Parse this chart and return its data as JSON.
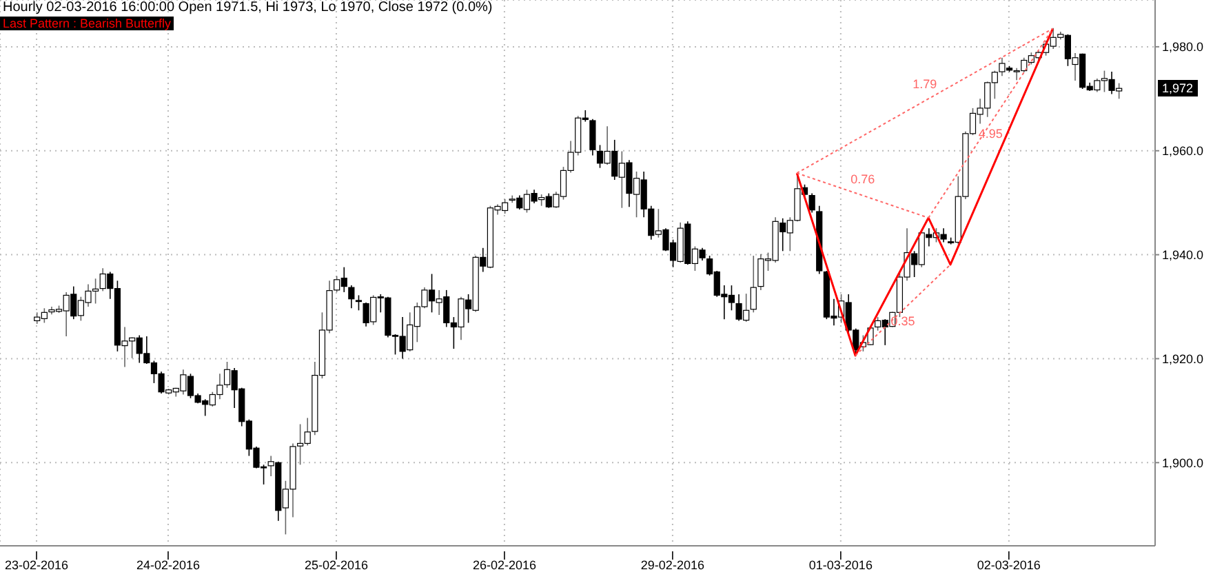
{
  "chart_data": {
    "type": "candlestick",
    "title": "Hourly 02-03-2016 16:00:00 Open 1971.5, Hi 1973, Lo 1970, Close 1972 (0.0%)",
    "subtitle": "Last Pattern : Bearish Butterfly",
    "categories": [
      "23-02-2016",
      null,
      null,
      null,
      null,
      null,
      null,
      null,
      null,
      null,
      null,
      null,
      null,
      null,
      null,
      null,
      null,
      null,
      "24-02-2016",
      null,
      null,
      null,
      null,
      null,
      null,
      null,
      null,
      null,
      null,
      null,
      null,
      null,
      null,
      null,
      null,
      null,
      null,
      null,
      null,
      null,
      null,
      "25-02-2016",
      null,
      null,
      null,
      null,
      null,
      null,
      null,
      null,
      null,
      null,
      null,
      null,
      null,
      null,
      null,
      null,
      null,
      null,
      null,
      null,
      null,
      null,
      "26-02-2016",
      null,
      null,
      null,
      null,
      null,
      null,
      null,
      null,
      null,
      null,
      null,
      null,
      null,
      null,
      null,
      null,
      null,
      null,
      null,
      null,
      null,
      null,
      "29-02-2016",
      null,
      null,
      null,
      null,
      null,
      null,
      null,
      null,
      null,
      null,
      null,
      null,
      null,
      null,
      null,
      null,
      null,
      null,
      null,
      null,
      null,
      null,
      "01-03-2016",
      null,
      null,
      null,
      null,
      null,
      null,
      null,
      null,
      null,
      null,
      null,
      null,
      null,
      null,
      null,
      null,
      null,
      null,
      null,
      null,
      null,
      null,
      "02-03-2016",
      null,
      null,
      null,
      null,
      null,
      null,
      null,
      null,
      null,
      null,
      null,
      null,
      null,
      null,
      null
    ],
    "ohlc": [
      [
        1927.3,
        1928.9,
        1926.7,
        1928
      ],
      [
        1927.7,
        1929.7,
        1926.9,
        1928.9
      ],
      [
        1929,
        1930,
        1928.5,
        1929.4
      ],
      [
        1929.1,
        1930.2,
        1928.8,
        1929.5
      ],
      [
        1929.2,
        1932.8,
        1924.3,
        1932.2
      ],
      [
        1932.4,
        1933.9,
        1927.6,
        1928.2
      ],
      [
        1928.3,
        1931.9,
        1927.3,
        1931.2
      ],
      [
        1930.8,
        1934.3,
        1930,
        1933
      ],
      [
        1933,
        1935.4,
        1930.6,
        1933.4
      ],
      [
        1933.5,
        1937.4,
        1933,
        1936.3
      ],
      [
        1936.3,
        1936.7,
        1931.5,
        1933.5
      ],
      [
        1933.5,
        1935,
        1921.4,
        1922.6
      ],
      [
        1922.5,
        1926.1,
        1918.4,
        1923.4
      ],
      [
        1923.4,
        1924.1,
        1920.1,
        1924
      ],
      [
        1924,
        1924.5,
        1919.2,
        1921
      ],
      [
        1921,
        1924.3,
        1919,
        1919.2
      ],
      [
        1919.2,
        1919.6,
        1915.3,
        1917.1
      ],
      [
        1917.1,
        1917.5,
        1913.3,
        1913.6
      ],
      [
        1913.4,
        1914.2,
        1913.1,
        1914
      ],
      [
        1913.6,
        1914.4,
        1912.7,
        1914.3
      ],
      [
        1913.8,
        1917.9,
        1913.1,
        1916.9
      ],
      [
        1916.6,
        1917.1,
        1912.4,
        1912.9
      ],
      [
        1912.9,
        1913.3,
        1911.4,
        1911.6
      ],
      [
        1911.9,
        1912.2,
        1909,
        1911.2
      ],
      [
        1911.1,
        1913.6,
        1910.8,
        1913.1
      ],
      [
        1913.1,
        1917.1,
        1912.2,
        1914.9
      ],
      [
        1915,
        1919.4,
        1914.4,
        1917.9
      ],
      [
        1917.7,
        1918.2,
        1910.5,
        1914
      ],
      [
        1914.2,
        1914.4,
        1907,
        1907.9
      ],
      [
        1908,
        1908.3,
        1901.3,
        1902.6
      ],
      [
        1902.8,
        1903.1,
        1898.9,
        1899.1
      ],
      [
        1899.2,
        1899.6,
        1895.8,
        1899
      ],
      [
        1899.4,
        1901.3,
        1897.4,
        1900.2
      ],
      [
        1900,
        1900.2,
        1888.8,
        1890.8
      ],
      [
        1891.3,
        1896.5,
        1886.2,
        1894.9
      ],
      [
        1894.9,
        1903.7,
        1889.5,
        1903.1
      ],
      [
        1903.2,
        1907.4,
        1899.6,
        1903.7
      ],
      [
        1903.7,
        1908.6,
        1903.3,
        1905.9
      ],
      [
        1906,
        1919.4,
        1905.3,
        1916.8
      ],
      [
        1916.8,
        1928.9,
        1916.2,
        1925.5
      ],
      [
        1925.5,
        1935,
        1924.9,
        1933.1
      ],
      [
        1933.2,
        1935.9,
        1932.8,
        1935.2
      ],
      [
        1935.5,
        1937.6,
        1932.8,
        1933.9
      ],
      [
        1933.7,
        1934.1,
        1929.7,
        1931.5
      ],
      [
        1931.2,
        1932.2,
        1929.3,
        1931
      ],
      [
        1930.6,
        1930.8,
        1926.2,
        1926.9
      ],
      [
        1927.1,
        1932.2,
        1926.5,
        1931.8
      ],
      [
        1931.9,
        1932.4,
        1928.9,
        1931.7
      ],
      [
        1931.7,
        1931.9,
        1924.1,
        1924.5
      ],
      [
        1924.5,
        1924.7,
        1920.8,
        1924.3
      ],
      [
        1924.3,
        1928,
        1920,
        1921.4
      ],
      [
        1921.7,
        1928.9,
        1921.4,
        1926.5
      ],
      [
        1926.2,
        1930.8,
        1923.2,
        1930
      ],
      [
        1930,
        1933.7,
        1929.7,
        1933.2
      ],
      [
        1933.2,
        1936.3,
        1928.9,
        1931.1
      ],
      [
        1930.8,
        1933.2,
        1928.4,
        1931.5
      ],
      [
        1931.9,
        1933.2,
        1926.1,
        1926.9
      ],
      [
        1926.9,
        1928,
        1921.9,
        1926.1
      ],
      [
        1926.1,
        1931.9,
        1923.6,
        1931.5
      ],
      [
        1931.3,
        1932.4,
        1926.9,
        1929.6
      ],
      [
        1929.3,
        1939.8,
        1929,
        1939.5
      ],
      [
        1939.5,
        1941.3,
        1936.7,
        1937.8
      ],
      [
        1937.6,
        1949.4,
        1937.4,
        1949
      ],
      [
        1948.6,
        1949.7,
        1947.7,
        1949.3
      ],
      [
        1948.5,
        1950.7,
        1947.9,
        1950
      ],
      [
        1950.6,
        1951.4,
        1950,
        1950.7
      ],
      [
        1950.9,
        1951.4,
        1948.7,
        1949
      ],
      [
        1948.7,
        1952.5,
        1948.1,
        1951.6
      ],
      [
        1951.8,
        1952.5,
        1949.9,
        1950.3
      ],
      [
        1950.6,
        1951.6,
        1949.4,
        1951
      ],
      [
        1951.2,
        1951.8,
        1949,
        1949.2
      ],
      [
        1949.2,
        1952.1,
        1949,
        1951.6
      ],
      [
        1951.2,
        1956.9,
        1950.6,
        1956.2
      ],
      [
        1956.2,
        1961.9,
        1955.8,
        1959.7
      ],
      [
        1959.7,
        1966.7,
        1959.1,
        1966.3
      ],
      [
        1966.3,
        1967.8,
        1965.6,
        1966
      ],
      [
        1965.8,
        1966.1,
        1959.1,
        1960.2
      ],
      [
        1959.9,
        1961.1,
        1956.7,
        1957.6
      ],
      [
        1957.6,
        1964.7,
        1957.3,
        1959.9
      ],
      [
        1959.9,
        1962.1,
        1954.4,
        1955.1
      ],
      [
        1954.9,
        1959.9,
        1949,
        1957.6
      ],
      [
        1957.7,
        1958.2,
        1949.2,
        1951.8
      ],
      [
        1951.6,
        1956,
        1947.2,
        1954.7
      ],
      [
        1954.4,
        1956,
        1947.2,
        1948.8
      ],
      [
        1948.8,
        1949.4,
        1942.9,
        1943.7
      ],
      [
        1943.9,
        1948.8,
        1943.3,
        1944.6
      ],
      [
        1944.8,
        1945.1,
        1940.7,
        1940.9
      ],
      [
        1942.3,
        1942.9,
        1937.6,
        1938.9
      ],
      [
        1938.7,
        1946.2,
        1938.5,
        1945.1
      ],
      [
        1945.9,
        1946.4,
        1938.1,
        1938.3
      ],
      [
        1938.3,
        1941.6,
        1936.9,
        1941.1
      ],
      [
        1940.9,
        1941.3,
        1938.9,
        1939.4
      ],
      [
        1939.2,
        1939.8,
        1936,
        1936.3
      ],
      [
        1936.7,
        1936.9,
        1931.9,
        1932.2
      ],
      [
        1932.4,
        1934.1,
        1927.6,
        1931.9
      ],
      [
        1932.2,
        1934.1,
        1929.3,
        1930.8
      ],
      [
        1930.6,
        1932.4,
        1927.3,
        1927.6
      ],
      [
        1927.4,
        1932.5,
        1927.1,
        1929.3
      ],
      [
        1929.5,
        1939.8,
        1928.9,
        1933.7
      ],
      [
        1933.9,
        1940.1,
        1933.2,
        1939.2
      ],
      [
        1938.9,
        1940.4,
        1936.9,
        1939.2
      ],
      [
        1938.9,
        1947.2,
        1938.5,
        1946.4
      ],
      [
        1946.1,
        1947,
        1940.7,
        1944.4
      ],
      [
        1944.2,
        1947.2,
        1940.7,
        1946.6
      ],
      [
        1946.6,
        1955.7,
        1946.4,
        1952.7
      ],
      [
        1952.9,
        1953.5,
        1951.2,
        1951.6
      ],
      [
        1951.4,
        1951.8,
        1948.1,
        1948.6
      ],
      [
        1948.3,
        1949.4,
        1936.3,
        1936.9
      ],
      [
        1936.7,
        1936.9,
        1927.6,
        1928
      ],
      [
        1928.2,
        1931.5,
        1926.4,
        1927.8
      ],
      [
        1928,
        1932.4,
        1926.9,
        1931.1
      ],
      [
        1930.8,
        1932.4,
        1924.9,
        1925.5
      ],
      [
        1925.5,
        1925.8,
        1920.6,
        1921.7
      ],
      [
        1922.3,
        1924.5,
        1921.4,
        1923.1
      ],
      [
        1922.7,
        1926.2,
        1922.6,
        1925.9
      ],
      [
        1926.1,
        1928,
        1925.4,
        1927.3
      ],
      [
        1927.4,
        1927.6,
        1922.6,
        1926.1
      ],
      [
        1926.2,
        1929,
        1926.1,
        1928.9
      ],
      [
        1928.9,
        1936.7,
        1928,
        1935.7
      ],
      [
        1935.7,
        1945.1,
        1935,
        1940.4
      ],
      [
        1940.2,
        1940.7,
        1935.7,
        1938.1
      ],
      [
        1938.1,
        1944.6,
        1937.6,
        1944.2
      ],
      [
        1943.9,
        1945.1,
        1941.6,
        1943.3
      ],
      [
        1943.3,
        1945.1,
        1942.4,
        1944.2
      ],
      [
        1943.9,
        1945.1,
        1942.4,
        1943
      ],
      [
        1942.5,
        1943.3,
        1942,
        1942.4
      ],
      [
        1942.4,
        1955.1,
        1942,
        1951.2
      ],
      [
        1951.2,
        1963.7,
        1950.7,
        1963.3
      ],
      [
        1963.3,
        1968.2,
        1963,
        1967.2
      ],
      [
        1967,
        1970,
        1965.2,
        1968.2
      ],
      [
        1968.2,
        1973.3,
        1966.5,
        1973.1
      ],
      [
        1973.1,
        1975.4,
        1970,
        1975.1
      ],
      [
        1975.2,
        1977.9,
        1974.4,
        1976.8
      ],
      [
        1975.9,
        1976.3,
        1975.2,
        1975.5
      ],
      [
        1975.2,
        1975.9,
        1973.6,
        1975.4
      ],
      [
        1975.4,
        1977.9,
        1975.1,
        1977.4
      ],
      [
        1977,
        1978.9,
        1976.6,
        1978.3
      ],
      [
        1977.9,
        1979.2,
        1977.4,
        1978.9
      ],
      [
        1978.9,
        1981.2,
        1978.3,
        1980.5
      ],
      [
        1980.1,
        1983.6,
        1979.6,
        1981.8
      ],
      [
        1981.8,
        1982.9,
        1981.4,
        1982.4
      ],
      [
        1982.2,
        1982.4,
        1976.3,
        1977.7
      ],
      [
        1976.6,
        1978.8,
        1973.5,
        1977.9
      ],
      [
        1978.6,
        1978.7,
        1971.9,
        1972.2
      ],
      [
        1972.4,
        1973.1,
        1971.5,
        1971.7
      ],
      [
        1971.7,
        1973.9,
        1971.3,
        1973.5
      ],
      [
        1973.5,
        1975.4,
        1971.3,
        1973.9
      ],
      [
        1973.7,
        1975.2,
        1970.9,
        1971.6
      ],
      [
        1971.5,
        1973,
        1970,
        1972
      ]
    ],
    "series": [
      {
        "type": "line",
        "color": "#ff0000",
        "line_style": "solid",
        "values": [
          null,
          null,
          null,
          null,
          null,
          null,
          null,
          null,
          null,
          null,
          null,
          null,
          null,
          null,
          null,
          null,
          null,
          null,
          null,
          null,
          null,
          null,
          null,
          null,
          null,
          null,
          null,
          null,
          null,
          null,
          null,
          null,
          null,
          null,
          null,
          null,
          null,
          null,
          null,
          null,
          null,
          null,
          null,
          null,
          null,
          null,
          null,
          null,
          null,
          null,
          null,
          null,
          null,
          null,
          null,
          null,
          null,
          null,
          null,
          null,
          null,
          null,
          null,
          null,
          null,
          null,
          null,
          null,
          null,
          null,
          null,
          null,
          null,
          null,
          null,
          null,
          null,
          null,
          null,
          null,
          null,
          null,
          null,
          null,
          null,
          null,
          null,
          null,
          null,
          null,
          null,
          null,
          null,
          null,
          null,
          null,
          null,
          null,
          null,
          null,
          null,
          null,
          null,
          null,
          1955.7,
          null,
          null,
          null,
          null,
          null,
          null,
          null,
          1920.6,
          null,
          null,
          null,
          null,
          null,
          null,
          null,
          null,
          null,
          1947.1,
          null,
          null,
          1938.1,
          null,
          null,
          null,
          null,
          null,
          null,
          null,
          null,
          null,
          null,
          null,
          null,
          null,
          1983.5,
          null,
          null,
          null,
          null,
          null,
          null,
          null,
          null,
          null
        ]
      },
      {
        "type": "line",
        "name": "0.76",
        "color": "#ff6666",
        "line_style": "dotted",
        "values": [
          null,
          null,
          null,
          null,
          null,
          null,
          null,
          null,
          null,
          null,
          null,
          null,
          null,
          null,
          null,
          null,
          null,
          null,
          null,
          null,
          null,
          null,
          null,
          null,
          null,
          null,
          null,
          null,
          null,
          null,
          null,
          null,
          null,
          null,
          null,
          null,
          null,
          null,
          null,
          null,
          null,
          null,
          null,
          null,
          null,
          null,
          null,
          null,
          null,
          null,
          null,
          null,
          null,
          null,
          null,
          null,
          null,
          null,
          null,
          null,
          null,
          null,
          null,
          null,
          null,
          null,
          null,
          null,
          null,
          null,
          null,
          null,
          null,
          null,
          null,
          null,
          null,
          null,
          null,
          null,
          null,
          null,
          null,
          null,
          null,
          null,
          null,
          null,
          null,
          null,
          null,
          null,
          null,
          null,
          null,
          null,
          null,
          null,
          null,
          null,
          null,
          null,
          null,
          null,
          1955.7,
          null,
          null,
          null,
          null,
          null,
          null,
          null,
          null,
          null,
          null,
          null,
          null,
          null,
          null,
          null,
          null,
          null,
          1947.1,
          null,
          null,
          null,
          null,
          null,
          null,
          null,
          null,
          null,
          null,
          null,
          null,
          null,
          null,
          null,
          null,
          null,
          null,
          null,
          null,
          null,
          null,
          null,
          null,
          null,
          null
        ]
      },
      {
        "type": "line",
        "name": "0.35",
        "color": "#ff6666",
        "line_style": "dotted",
        "values": [
          null,
          null,
          null,
          null,
          null,
          null,
          null,
          null,
          null,
          null,
          null,
          null,
          null,
          null,
          null,
          null,
          null,
          null,
          null,
          null,
          null,
          null,
          null,
          null,
          null,
          null,
          null,
          null,
          null,
          null,
          null,
          null,
          null,
          null,
          null,
          null,
          null,
          null,
          null,
          null,
          null,
          null,
          null,
          null,
          null,
          null,
          null,
          null,
          null,
          null,
          null,
          null,
          null,
          null,
          null,
          null,
          null,
          null,
          null,
          null,
          null,
          null,
          null,
          null,
          null,
          null,
          null,
          null,
          null,
          null,
          null,
          null,
          null,
          null,
          null,
          null,
          null,
          null,
          null,
          null,
          null,
          null,
          null,
          null,
          null,
          null,
          null,
          null,
          null,
          null,
          null,
          null,
          null,
          null,
          null,
          null,
          null,
          null,
          null,
          null,
          null,
          null,
          null,
          null,
          null,
          null,
          null,
          null,
          null,
          null,
          null,
          null,
          1920.6,
          null,
          null,
          null,
          null,
          null,
          null,
          null,
          null,
          null,
          null,
          null,
          null,
          1938.1,
          null,
          null,
          null,
          null,
          null,
          null,
          null,
          null,
          null,
          null,
          null,
          null,
          null,
          null,
          null,
          null,
          null,
          null,
          null,
          null,
          null,
          null,
          null
        ]
      },
      {
        "type": "line",
        "name": "1.79",
        "color": "#ff6666",
        "line_style": "dotted",
        "values": [
          null,
          null,
          null,
          null,
          null,
          null,
          null,
          null,
          null,
          null,
          null,
          null,
          null,
          null,
          null,
          null,
          null,
          null,
          null,
          null,
          null,
          null,
          null,
          null,
          null,
          null,
          null,
          null,
          null,
          null,
          null,
          null,
          null,
          null,
          null,
          null,
          null,
          null,
          null,
          null,
          null,
          null,
          null,
          null,
          null,
          null,
          null,
          null,
          null,
          null,
          null,
          null,
          null,
          null,
          null,
          null,
          null,
          null,
          null,
          null,
          null,
          null,
          null,
          null,
          null,
          null,
          null,
          null,
          null,
          null,
          null,
          null,
          null,
          null,
          null,
          null,
          null,
          null,
          null,
          null,
          null,
          null,
          null,
          null,
          null,
          null,
          null,
          null,
          null,
          null,
          null,
          null,
          null,
          null,
          null,
          null,
          null,
          null,
          null,
          null,
          null,
          null,
          null,
          null,
          1955.7,
          null,
          null,
          null,
          null,
          null,
          null,
          null,
          null,
          null,
          null,
          null,
          null,
          null,
          null,
          null,
          null,
          null,
          null,
          null,
          null,
          null,
          null,
          null,
          null,
          null,
          null,
          null,
          null,
          null,
          null,
          null,
          null,
          null,
          null,
          1983.5,
          null,
          null,
          null,
          null,
          null,
          null,
          null,
          null,
          null
        ]
      },
      {
        "type": "line",
        "name": "4.95",
        "color": "#ff6666",
        "line_style": "dotted",
        "values": [
          null,
          null,
          null,
          null,
          null,
          null,
          null,
          null,
          null,
          null,
          null,
          null,
          null,
          null,
          null,
          null,
          null,
          null,
          null,
          null,
          null,
          null,
          null,
          null,
          null,
          null,
          null,
          null,
          null,
          null,
          null,
          null,
          null,
          null,
          null,
          null,
          null,
          null,
          null,
          null,
          null,
          null,
          null,
          null,
          null,
          null,
          null,
          null,
          null,
          null,
          null,
          null,
          null,
          null,
          null,
          null,
          null,
          null,
          null,
          null,
          null,
          null,
          null,
          null,
          null,
          null,
          null,
          null,
          null,
          null,
          null,
          null,
          null,
          null,
          null,
          null,
          null,
          null,
          null,
          null,
          null,
          null,
          null,
          null,
          null,
          null,
          null,
          null,
          null,
          null,
          null,
          null,
          null,
          null,
          null,
          null,
          null,
          null,
          null,
          null,
          null,
          null,
          null,
          null,
          null,
          null,
          null,
          null,
          null,
          null,
          null,
          null,
          null,
          null,
          null,
          null,
          null,
          null,
          null,
          null,
          null,
          null,
          1947.1,
          null,
          null,
          null,
          null,
          null,
          null,
          null,
          null,
          null,
          null,
          null,
          null,
          null,
          null,
          null,
          null,
          1983.5,
          null,
          null,
          null,
          null,
          null,
          null,
          null,
          null,
          null
        ]
      }
    ],
    "ylim": [
      1884,
      1989
    ],
    "yticks": [
      {
        "value": 1900,
        "label": "1,900.0"
      },
      {
        "value": 1920,
        "label": "1,920.0"
      },
      {
        "value": 1940,
        "label": "1,940.0"
      },
      {
        "value": 1960,
        "label": "1,960.0"
      },
      {
        "value": 1980,
        "label": "1,980.0"
      }
    ],
    "annotations": [
      "1,972"
    ],
    "grid": true
  }
}
